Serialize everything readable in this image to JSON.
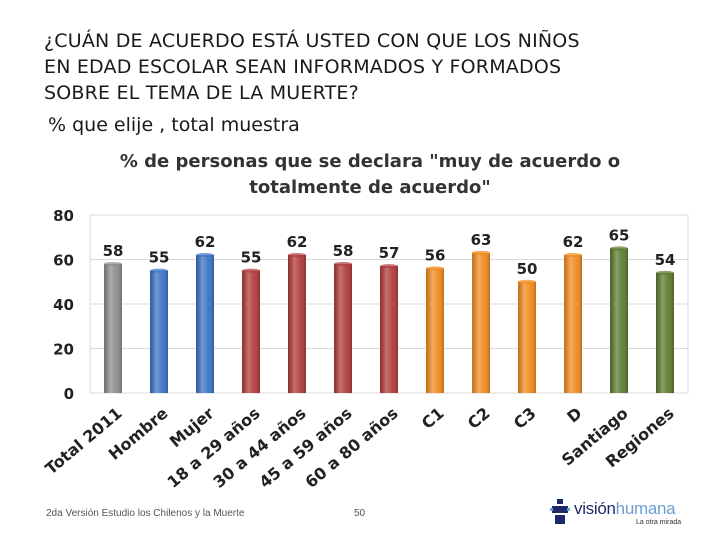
{
  "slide": {
    "title_lines": [
      "¿CUÁN DE ACUERDO ESTÁ USTED CON QUE LOS NIÑOS",
      "EN EDAD ESCOLAR SEAN INFORMADOS Y FORMADOS",
      "SOBRE EL TEMA DE LA MUERTE?"
    ],
    "subtitle": "% que elije , total muestra"
  },
  "chart_data": {
    "type": "bar",
    "title_lines": [
      "% de personas que se declara \"muy de acuerdo o",
      "totalmente de acuerdo\""
    ],
    "categories": [
      "Total 2011",
      "Hombre",
      "Mujer",
      "18 a 29 años",
      "30 a 44 años",
      "45 a 59 años",
      "60 a 80 años",
      "C1",
      "C2",
      "C3",
      "D",
      "Santiago",
      "Regiones"
    ],
    "values": [
      58,
      55,
      62,
      55,
      62,
      58,
      57,
      56,
      63,
      50,
      62,
      65,
      54
    ],
    "data_labels": [
      "58",
      "55",
      "62",
      "55",
      "62",
      "58",
      "57",
      "56",
      "63",
      "50",
      "62",
      "65",
      "54"
    ],
    "bar_colors": [
      "#8c8c8c",
      "#3a72c4",
      "#3a72c4",
      "#b03a3a",
      "#b03a3a",
      "#b03a3a",
      "#b03a3a",
      "#f08a1e",
      "#f08a1e",
      "#f08a1e",
      "#f08a1e",
      "#5c7a2e",
      "#5c7a2e"
    ],
    "ylim": [
      0,
      80
    ],
    "yticks": [
      0,
      20,
      40,
      60,
      80
    ],
    "ytick_labels": [
      "0",
      "20",
      "40",
      "60",
      "80"
    ],
    "grid": true,
    "xlabel": "",
    "ylabel": ""
  },
  "footer": {
    "note": "2da Versión Estudio los Chilenos y la Muerte",
    "page_number": "50"
  },
  "logo": {
    "text_part1": "visión",
    "text_part2": "humana",
    "tagline": "La otra mirada"
  }
}
